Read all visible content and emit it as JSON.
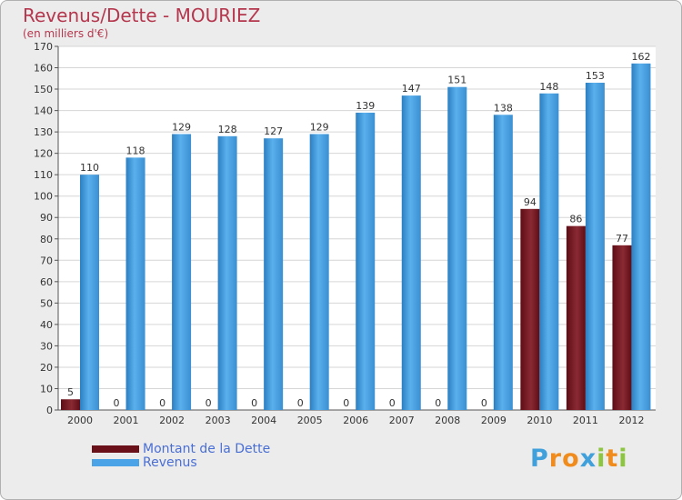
{
  "chart_data": {
    "type": "bar",
    "title": "Revenus/Dette - MOURIEZ",
    "subtitle": "(en milliers d'€)",
    "categories": [
      "2000",
      "2001",
      "2002",
      "2003",
      "2004",
      "2005",
      "2006",
      "2007",
      "2008",
      "2009",
      "2010",
      "2011",
      "2012"
    ],
    "series": [
      {
        "name": "Montant de la Dette",
        "color": "#7a1420",
        "values": [
          5,
          0,
          0,
          0,
          0,
          0,
          0,
          0,
          0,
          0,
          94,
          86,
          77
        ]
      },
      {
        "name": "Revenus",
        "color": "#4aa3e6",
        "values": [
          110,
          118,
          129,
          128,
          127,
          129,
          139,
          147,
          151,
          138,
          148,
          153,
          162
        ]
      }
    ],
    "ylim": [
      0,
      170
    ],
    "yticks": [
      0,
      10,
      20,
      30,
      40,
      50,
      60,
      70,
      80,
      90,
      100,
      110,
      120,
      130,
      140,
      150,
      160,
      170
    ],
    "grid": true,
    "legend_position": "bottom-left"
  },
  "legend": {
    "debt_label": "Montant de la Dette",
    "revenue_label": "Revenus"
  },
  "brand": {
    "letters": [
      "P",
      "r",
      "o",
      "x",
      "i",
      "t",
      "i"
    ],
    "colors": [
      "#3fa0dc",
      "#f08c1e",
      "#f08c1e",
      "#3fa0dc",
      "#8cc63f",
      "#f08c1e",
      "#8cc63f"
    ]
  }
}
